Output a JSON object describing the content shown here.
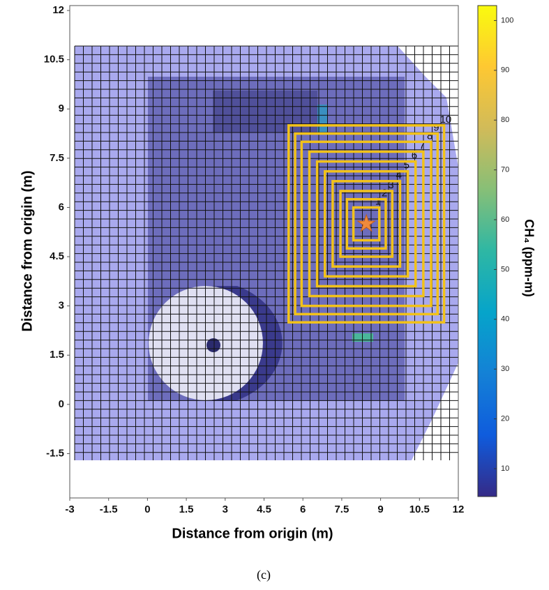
{
  "chart_data": {
    "type": "map",
    "x_label": "Distance from origin (m)",
    "y_label": "Distance from origin (m)",
    "xlim": [
      -3,
      12
    ],
    "xticks": [
      -3,
      -1.5,
      0,
      1.5,
      3,
      4.5,
      6,
      7.5,
      9,
      10.5,
      12
    ],
    "ylim": [
      -2.85,
      12.15
    ],
    "yticks": [
      -1.5,
      0,
      1.5,
      3,
      4.5,
      6,
      7.5,
      9,
      10.5,
      12
    ],
    "source": {
      "x": 8.45,
      "y": 5.5,
      "color": "#f08a3c"
    },
    "rings": {
      "color": "#f2c21a",
      "labels": [
        "1",
        "2",
        "3",
        "4",
        "5",
        "6",
        "7",
        "8",
        "9",
        "10"
      ],
      "half_sizes": [
        0.5,
        0.75,
        1.0,
        1.3,
        1.6,
        1.9,
        2.2,
        2.5,
        2.75,
        3.0
      ]
    },
    "colorbar": {
      "label": "CH₄ (ppm-m)",
      "lim": [
        4.4,
        103
      ],
      "ticks": [
        10,
        20,
        30,
        40,
        50,
        60,
        70,
        80,
        90,
        100
      ],
      "colormap": [
        "#352a87",
        "#0f5cdd",
        "#1481d6",
        "#06a4ca",
        "#2eb7a4",
        "#87bf77",
        "#d1bb59",
        "#fec832",
        "#f9fb0e"
      ]
    },
    "caption": "(c)"
  }
}
